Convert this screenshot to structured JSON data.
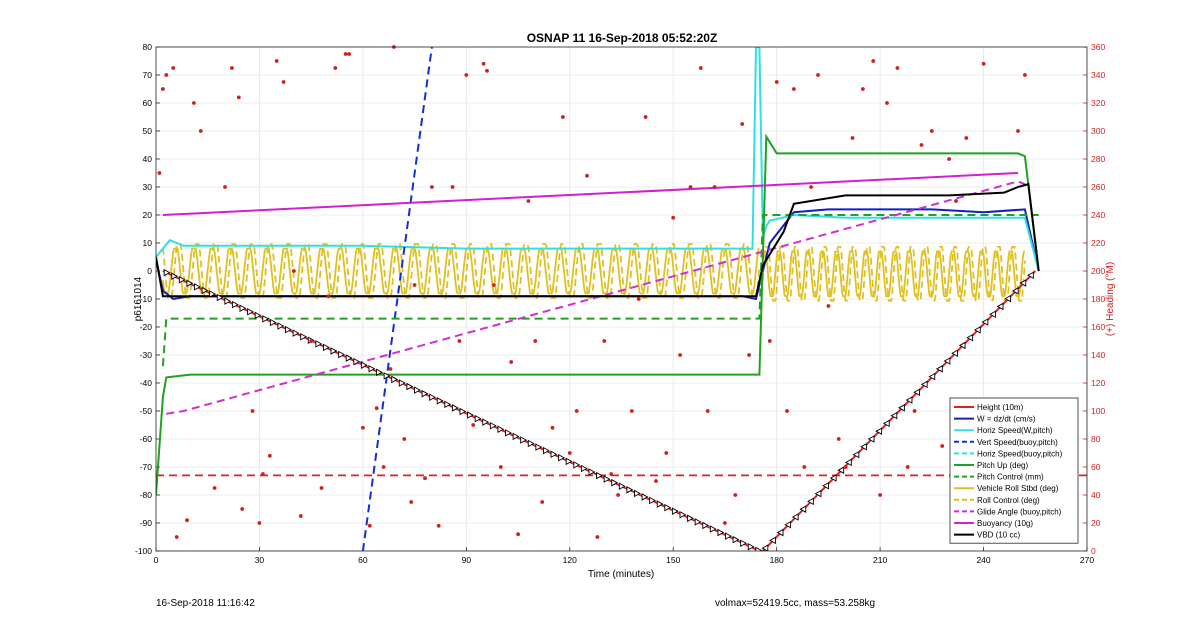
{
  "chart_data": {
    "type": "line",
    "title": "OSNAP 11 16-Sep-2018 05:52:20Z",
    "xlabel": "Time (minutes)",
    "ylabel": "p6161014",
    "ylabel_right": "(+) Heading (°M)",
    "xlim": [
      0,
      270
    ],
    "ylim": [
      -100,
      80
    ],
    "ylim_right": [
      0,
      360
    ],
    "x_ticks": [
      0,
      30,
      60,
      90,
      120,
      150,
      180,
      210,
      240,
      270
    ],
    "y_ticks": [
      -100,
      -90,
      -80,
      -70,
      -60,
      -50,
      -40,
      -30,
      -20,
      -10,
      0,
      10,
      20,
      30,
      40,
      50,
      60,
      70,
      80
    ],
    "y_ticks_right": [
      0,
      20,
      40,
      60,
      80,
      100,
      120,
      140,
      160,
      180,
      200,
      220,
      240,
      260,
      280,
      300,
      320,
      340,
      360
    ],
    "grid": true,
    "legend_position": "bottom-right",
    "series": [
      {
        "name": "Height (10m)",
        "color": "#e02020",
        "style": "solid",
        "x": [
          2,
          175,
          176,
          255
        ],
        "y": [
          0,
          -100,
          -100,
          0
        ]
      },
      {
        "name": "W = dz/dt (cm/s)",
        "color": "#1020c0",
        "style": "solid",
        "x": [
          0,
          2,
          5,
          10,
          30,
          60,
          90,
          120,
          150,
          170,
          174,
          178,
          185,
          195,
          210,
          225,
          240,
          252,
          256
        ],
        "y": [
          4,
          -7,
          -10,
          -9,
          -9,
          -9,
          -9,
          -9,
          -9,
          -9,
          -10,
          10,
          21,
          22,
          22,
          22,
          21,
          22,
          0
        ]
      },
      {
        "name": "Horiz Speed(W,pitch)",
        "color": "#30e0e0",
        "style": "solid",
        "x": [
          0,
          2,
          4,
          8,
          15,
          30,
          60,
          90,
          120,
          150,
          170,
          173,
          174,
          175,
          176,
          177,
          178,
          185,
          200,
          230,
          252,
          256
        ],
        "y": [
          5,
          8,
          11,
          9,
          9,
          9,
          9,
          8,
          8,
          8,
          8,
          8,
          80,
          80,
          12,
          16,
          18,
          20,
          19,
          19,
          19,
          0
        ]
      },
      {
        "name": "Vert Speed(buoy,pitch)",
        "color": "#1030d0",
        "style": "dashed",
        "x": [
          60,
          80
        ],
        "y": [
          -100,
          80
        ]
      },
      {
        "name": "Horiz Speed(buoy,pitch)",
        "color": "#30e0e0",
        "style": "dashed",
        "x": [],
        "y": []
      },
      {
        "name": "Pitch Up (deg)",
        "color": "#22a022",
        "style": "solid",
        "x": [
          0,
          2,
          3,
          10,
          30,
          60,
          90,
          120,
          150,
          174,
          175,
          176,
          177,
          180,
          190,
          210,
          230,
          250,
          252,
          256
        ],
        "y": [
          -80,
          -45,
          -38,
          -37,
          -37,
          -37,
          -37,
          -37,
          -37,
          -37,
          -37,
          5,
          48,
          42,
          42,
          42,
          42,
          42,
          41,
          0
        ]
      },
      {
        "name": "Pitch Control (mm)",
        "color": "#22a022",
        "style": "dashed",
        "x": [
          2,
          3,
          174,
          175,
          176,
          256
        ],
        "y": [
          -34,
          -17,
          -17,
          -17,
          20,
          20
        ]
      },
      {
        "name": "Vehicle Roll Stbd (deg)",
        "color": "#e0c020",
        "style": "solid",
        "x": [],
        "y": []
      },
      {
        "name": "Roll Control (deg)",
        "color": "#e0c020",
        "style": "dashed",
        "x": [],
        "y": []
      },
      {
        "name": "Glide Angle (buoy,pitch)",
        "color": "#d030d0",
        "style": "dashed",
        "x": [
          3,
          8,
          250,
          252
        ],
        "y": [
          -51,
          -50,
          32,
          31
        ]
      },
      {
        "name": "Buoyancy (10g)",
        "color": "#d020d0",
        "style": "solid",
        "x": [
          2,
          250
        ],
        "y": [
          20,
          35
        ]
      },
      {
        "name": "VBD (10 cc)",
        "color": "#000000",
        "style": "solid",
        "x": [
          0,
          2,
          174,
          176,
          182,
          185,
          200,
          230,
          246,
          250,
          253,
          256
        ],
        "y": [
          5,
          -9,
          -9,
          2,
          14,
          24,
          27,
          27,
          28,
          30,
          31,
          0
        ]
      }
    ],
    "reference_line": {
      "y": -73,
      "color": "#e02020",
      "style": "dashed"
    },
    "heading_points_right_axis": {
      "color": "#d11f1f",
      "x": [
        1,
        2,
        3,
        5,
        6,
        9,
        11,
        13,
        17,
        20,
        22,
        24,
        25,
        28,
        30,
        31,
        33,
        35,
        37,
        40,
        42,
        45,
        48,
        50,
        52,
        55,
        56,
        60,
        62,
        64,
        66,
        68,
        69,
        72,
        74,
        75,
        78,
        80,
        82,
        86,
        88,
        90,
        92,
        95,
        96,
        98,
        100,
        103,
        105,
        108,
        110,
        112,
        115,
        118,
        120,
        122,
        125,
        128,
        130,
        132,
        134,
        138,
        140,
        142,
        145,
        148,
        150,
        152,
        155,
        158,
        160,
        162,
        165,
        168,
        170,
        172,
        178,
        180,
        183,
        185,
        188,
        190,
        192,
        195,
        198,
        200,
        202,
        205,
        208,
        210,
        212,
        215,
        218,
        220,
        222,
        225,
        228,
        230,
        232,
        235,
        238,
        240,
        242,
        245,
        248,
        250,
        252
      ],
      "y": [
        270,
        330,
        340,
        345,
        10,
        22,
        320,
        300,
        45,
        260,
        345,
        324,
        30,
        100,
        20,
        55,
        68,
        350,
        335,
        200,
        25,
        150,
        45,
        182,
        345,
        355,
        355,
        88,
        18,
        102,
        60,
        130,
        360,
        80,
        35,
        190,
        52,
        260,
        18,
        260,
        150,
        340,
        90,
        348,
        343,
        190,
        60,
        135,
        12,
        250,
        150,
        35,
        88,
        310,
        70,
        100,
        268,
        10,
        150,
        55,
        40,
        100,
        180,
        310,
        50,
        70,
        238,
        140,
        260,
        345,
        100,
        260,
        20,
        40,
        305,
        140,
        150,
        335,
        100,
        330,
        60,
        260,
        340,
        175,
        80,
        60,
        295,
        330,
        350,
        40,
        320,
        345,
        60,
        100,
        290,
        300,
        75,
        280,
        250,
        295,
        45,
        348,
        60,
        80,
        40,
        300,
        340
      ]
    }
  },
  "footer": {
    "timestamp": "16-Sep-2018 11:16:42",
    "info": "volmax=52419.5cc, mass=53.258kg"
  }
}
